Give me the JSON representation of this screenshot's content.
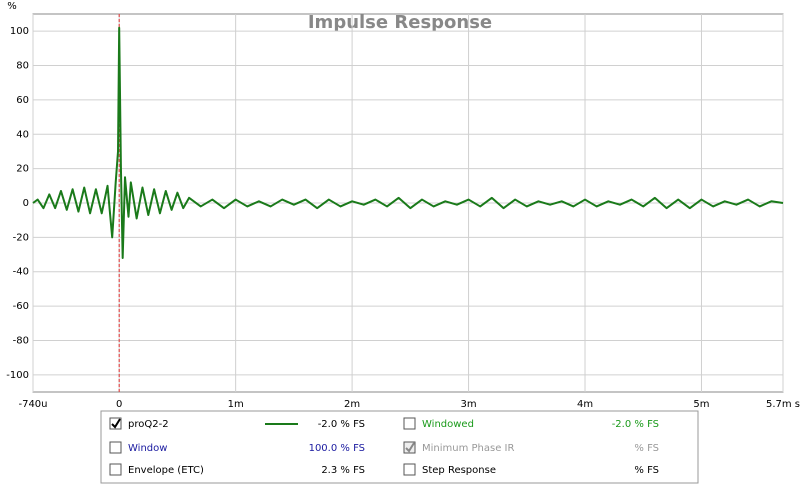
{
  "chart_data": {
    "type": "line",
    "title": "Impulse Response",
    "ylabel": "%",
    "x": [
      -0.74,
      -0.7,
      -0.65,
      -0.6,
      -0.55,
      -0.5,
      -0.45,
      -0.4,
      -0.35,
      -0.3,
      -0.25,
      -0.2,
      -0.15,
      -0.1,
      -0.06,
      -0.03,
      -0.01,
      0,
      0.015,
      0.03,
      0.05,
      0.08,
      0.1,
      0.15,
      0.2,
      0.25,
      0.3,
      0.35,
      0.4,
      0.45,
      0.5,
      0.55,
      0.6,
      0.7,
      0.8,
      0.9,
      1.0,
      1.1,
      1.2,
      1.3,
      1.4,
      1.5,
      1.6,
      1.7,
      1.8,
      1.9,
      2.0,
      2.1,
      2.2,
      2.3,
      2.4,
      2.5,
      2.6,
      2.7,
      2.8,
      2.9,
      3.0,
      3.1,
      3.2,
      3.3,
      3.4,
      3.5,
      3.6,
      3.7,
      3.8,
      3.9,
      4.0,
      4.1,
      4.2,
      4.3,
      4.4,
      4.5,
      4.6,
      4.7,
      4.8,
      4.9,
      5.0,
      5.1,
      5.2,
      5.3,
      5.4,
      5.5,
      5.6,
      5.7
    ],
    "series": [
      {
        "name": "proQ2-2",
        "color": "#1a7a1a",
        "values": [
          0,
          2,
          -3,
          5,
          -3,
          7,
          -4,
          8,
          -5,
          9,
          -6,
          8,
          -6,
          10,
          -20,
          12,
          30,
          102,
          20,
          -32,
          15,
          -8,
          12,
          -9,
          9,
          -7,
          8,
          -6,
          7,
          -4,
          6,
          -3,
          3,
          -2,
          2,
          -3,
          2,
          -2,
          1,
          -2,
          2,
          -1,
          2,
          -3,
          2,
          -2,
          1,
          -1,
          2,
          -2,
          3,
          -3,
          2,
          -2,
          1,
          -1,
          2,
          -2,
          3,
          -3,
          2,
          -2,
          1,
          -1,
          1,
          -2,
          2,
          -2,
          1,
          -1,
          2,
          -2,
          3,
          -3,
          2,
          -3,
          2,
          -2,
          1,
          -1,
          2,
          -2,
          1,
          0
        ]
      }
    ],
    "cursor_x": 0,
    "xlim": [
      -0.74,
      5.7
    ],
    "xticks": [
      {
        "value": -0.74,
        "label": "-740u"
      },
      0,
      {
        "value": 1,
        "label": "1m"
      },
      {
        "value": 2,
        "label": "2m"
      },
      {
        "value": 3,
        "label": "3m"
      },
      {
        "value": 4,
        "label": "4m"
      },
      {
        "value": 5,
        "label": "5m"
      },
      {
        "value": 5.7,
        "label": "5.7m s"
      }
    ],
    "ylim": [
      -110,
      110
    ],
    "yticks": [
      -100,
      -80,
      -60,
      -40,
      -20,
      0,
      20,
      40,
      60,
      80,
      100
    ],
    "grid": true
  },
  "panel": {
    "rows": [
      [
        {
          "label": "proQ2-2",
          "value": "-2.0 % FS",
          "checked": true,
          "color": "#000000"
        },
        {
          "label": "Windowed",
          "value": "-2.0 % FS",
          "checked": false,
          "color": "#1a9a1a"
        }
      ],
      [
        {
          "label": "Window",
          "value": "100.0 % FS",
          "checked": false,
          "color": "#1a1aa0"
        },
        {
          "label": "Minimum Phase IR",
          "value": "% FS",
          "checked": true,
          "color": "#999999"
        }
      ],
      [
        {
          "label": "Envelope (ETC)",
          "value": "2.3 % FS",
          "checked": false,
          "color": "#000000"
        },
        {
          "label": "Step Response",
          "value": "% FS",
          "checked": false,
          "color": "#000000"
        }
      ]
    ]
  }
}
